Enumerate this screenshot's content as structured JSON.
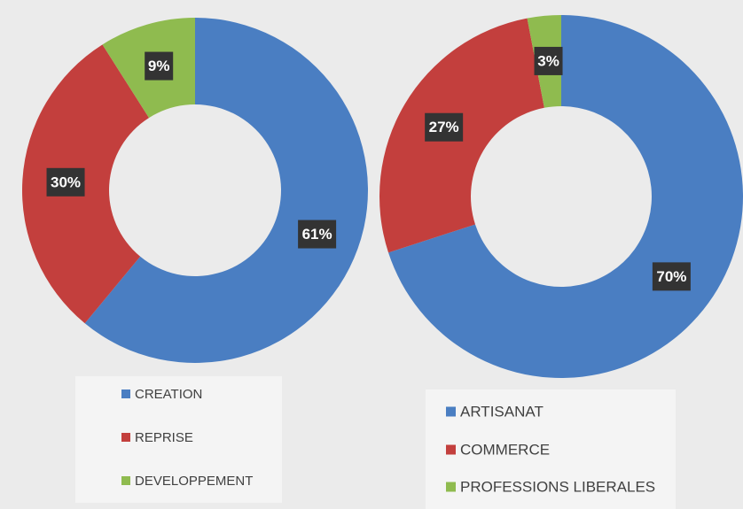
{
  "chart_data": [
    {
      "type": "pie",
      "categories": [
        "CREATION",
        "REPRISE",
        "DEVELOPPEMENT"
      ],
      "values": [
        61,
        30,
        9
      ],
      "value_labels": [
        "61%",
        "30%",
        "9%"
      ],
      "colors": [
        "#4a7ec2",
        "#c33f3d",
        "#8fbb4f"
      ]
    },
    {
      "type": "pie",
      "categories": [
        "ARTISANAT",
        "COMMERCE",
        "PROFESSIONS LIBERALES"
      ],
      "values": [
        70,
        27,
        3
      ],
      "value_labels": [
        "70%",
        "27%",
        "3%"
      ],
      "colors": [
        "#4a7ec2",
        "#c33f3d",
        "#8fbb4f"
      ]
    }
  ]
}
